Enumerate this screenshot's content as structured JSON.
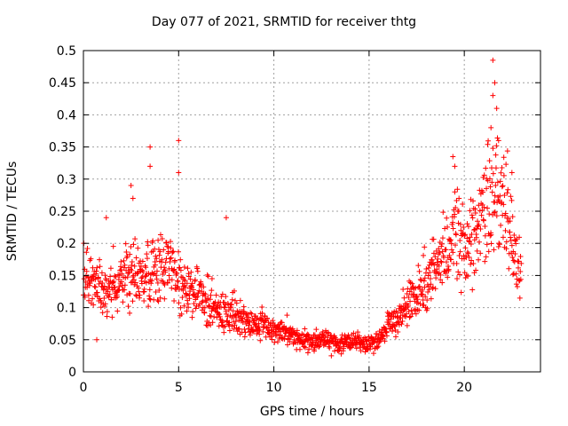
{
  "chart_data": {
    "type": "scatter",
    "title": "Day 077 of 2021, SRMTID for receiver thtg",
    "xlabel": "GPS time / hours",
    "ylabel": "SRMTID / TECUs",
    "xlim": [
      0,
      24
    ],
    "ylim": [
      0,
      0.5
    ],
    "x_ticks": [
      "0",
      "5",
      "10",
      "15",
      "20"
    ],
    "y_ticks": [
      "0",
      "0.05",
      "0.1",
      "0.15",
      "0.2",
      "0.25",
      "0.3",
      "0.35",
      "0.4",
      "0.45",
      "0.5"
    ],
    "grid": true,
    "marker": "plus",
    "series": [
      {
        "name": "SRMTID",
        "color": "#ff0000",
        "trend": [
          [
            0.0,
            0.15
          ],
          [
            0.5,
            0.14
          ],
          [
            1.0,
            0.12
          ],
          [
            1.5,
            0.13
          ],
          [
            2.0,
            0.15
          ],
          [
            2.5,
            0.16
          ],
          [
            3.0,
            0.15
          ],
          [
            3.5,
            0.15
          ],
          [
            4.0,
            0.16
          ],
          [
            4.5,
            0.17
          ],
          [
            5.0,
            0.14
          ],
          [
            5.5,
            0.13
          ],
          [
            6.0,
            0.12
          ],
          [
            6.5,
            0.11
          ],
          [
            7.0,
            0.1
          ],
          [
            7.5,
            0.095
          ],
          [
            8.0,
            0.085
          ],
          [
            8.5,
            0.08
          ],
          [
            9.0,
            0.075
          ],
          [
            9.5,
            0.07
          ],
          [
            10.0,
            0.065
          ],
          [
            10.5,
            0.06
          ],
          [
            11.0,
            0.055
          ],
          [
            11.5,
            0.05
          ],
          [
            12.0,
            0.048
          ],
          [
            12.5,
            0.05
          ],
          [
            13.0,
            0.048
          ],
          [
            13.5,
            0.045
          ],
          [
            14.0,
            0.045
          ],
          [
            14.5,
            0.045
          ],
          [
            15.0,
            0.045
          ],
          [
            15.5,
            0.05
          ],
          [
            16.0,
            0.07
          ],
          [
            16.5,
            0.08
          ],
          [
            17.0,
            0.1
          ],
          [
            17.5,
            0.12
          ],
          [
            18.0,
            0.14
          ],
          [
            18.5,
            0.16
          ],
          [
            19.0,
            0.19
          ],
          [
            19.5,
            0.21
          ],
          [
            20.0,
            0.2
          ],
          [
            20.5,
            0.21
          ],
          [
            21.0,
            0.25
          ],
          [
            21.5,
            0.29
          ],
          [
            22.0,
            0.27
          ],
          [
            22.5,
            0.22
          ],
          [
            23.0,
            0.15
          ]
        ],
        "outliers": [
          [
            3.5,
            0.35
          ],
          [
            3.5,
            0.32
          ],
          [
            5.0,
            0.36
          ],
          [
            5.0,
            0.31
          ],
          [
            21.5,
            0.485
          ],
          [
            21.6,
            0.45
          ],
          [
            21.5,
            0.43
          ],
          [
            21.7,
            0.41
          ],
          [
            21.4,
            0.38
          ],
          [
            21.8,
            0.36
          ],
          [
            19.4,
            0.335
          ],
          [
            19.5,
            0.32
          ],
          [
            2.5,
            0.29
          ],
          [
            2.6,
            0.27
          ],
          [
            7.5,
            0.24
          ],
          [
            1.2,
            0.24
          ],
          [
            0.7,
            0.05
          ],
          [
            22.5,
            0.31
          ]
        ],
        "points_per_hour": 60,
        "scatter_spread": 0.35
      }
    ]
  }
}
